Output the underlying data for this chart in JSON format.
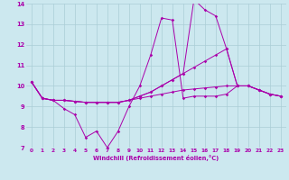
{
  "xlabel": "Windchill (Refroidissement éolien,°C)",
  "bg_color": "#cce8ef",
  "grid_color": "#aacdd6",
  "line_color": "#aa00aa",
  "x_range": [
    -0.5,
    23.5
  ],
  "y_range": [
    7,
    14
  ],
  "yticks": [
    7,
    8,
    9,
    10,
    11,
    12,
    13,
    14
  ],
  "xticks": [
    0,
    1,
    2,
    3,
    4,
    5,
    6,
    7,
    8,
    9,
    10,
    11,
    12,
    13,
    14,
    15,
    16,
    17,
    18,
    19,
    20,
    21,
    22,
    23
  ],
  "series": [
    [
      10.2,
      9.4,
      9.3,
      8.9,
      8.6,
      7.5,
      7.8,
      7.0,
      7.8,
      9.0,
      10.0,
      11.5,
      13.3,
      13.2,
      9.4,
      9.5,
      9.5,
      9.5,
      9.6,
      10.0,
      10.0,
      9.8,
      9.6,
      9.5
    ],
    [
      10.2,
      9.4,
      9.3,
      9.3,
      9.25,
      9.2,
      9.2,
      9.2,
      9.2,
      9.3,
      9.5,
      9.7,
      10.0,
      10.3,
      10.6,
      10.9,
      11.2,
      11.5,
      11.8,
      10.0,
      10.0,
      9.8,
      9.6,
      9.5
    ],
    [
      10.2,
      9.4,
      9.3,
      9.3,
      9.25,
      9.2,
      9.2,
      9.2,
      9.2,
      9.3,
      9.5,
      9.7,
      10.0,
      10.3,
      10.6,
      14.2,
      13.7,
      13.4,
      11.8,
      10.0,
      10.0,
      9.8,
      9.6,
      9.5
    ],
    [
      10.2,
      9.4,
      9.3,
      9.3,
      9.25,
      9.2,
      9.2,
      9.2,
      9.2,
      9.3,
      9.4,
      9.5,
      9.6,
      9.7,
      9.8,
      9.85,
      9.9,
      9.95,
      10.0,
      10.0,
      10.0,
      9.8,
      9.6,
      9.5
    ]
  ]
}
